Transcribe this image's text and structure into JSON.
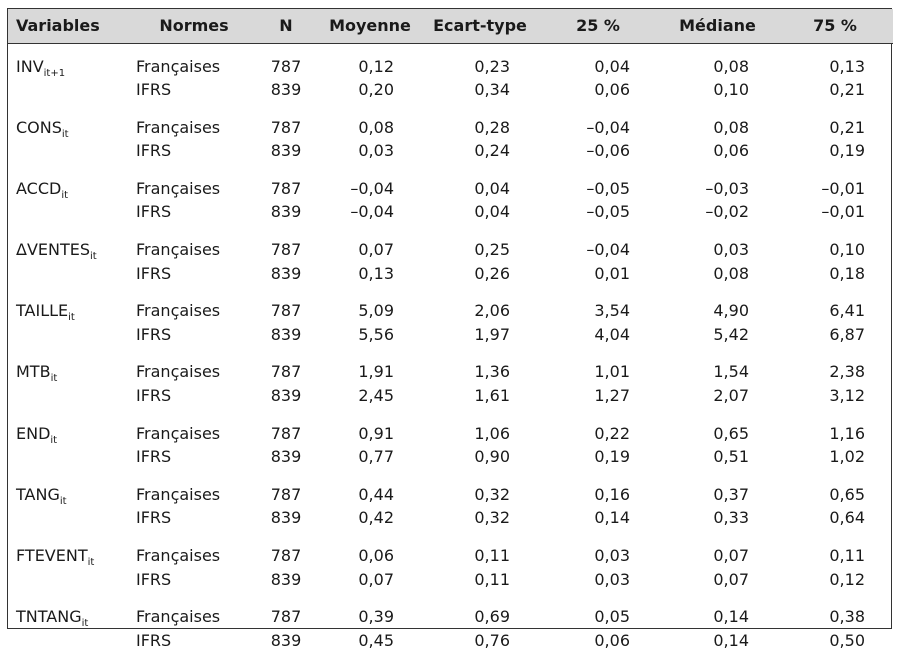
{
  "headers": {
    "variables": "Variables",
    "normes": "Normes",
    "n": "N",
    "moyenne": "Moyenne",
    "ecart_type": "Ecart-type",
    "p25": "25 %",
    "mediane": "Médiane",
    "p75": "75 %"
  },
  "groups": [
    {
      "name": "INV",
      "sub": "it+1",
      "rows": [
        {
          "norme": "Françaises",
          "n": "787",
          "moyenne": "0,12",
          "ecart": "0,23",
          "p25": "0,04",
          "mediane": "0,08",
          "p75": "0,13"
        },
        {
          "norme": "IFRS",
          "n": "839",
          "moyenne": "0,20",
          "ecart": "0,34",
          "p25": "0,06",
          "mediane": "0,10",
          "p75": "0,21"
        }
      ]
    },
    {
      "name": "CONS",
      "sub": "it",
      "rows": [
        {
          "norme": "Françaises",
          "n": "787",
          "moyenne": "0,08",
          "ecart": "0,28",
          "p25": "–0,04",
          "mediane": "0,08",
          "p75": "0,21"
        },
        {
          "norme": "IFRS",
          "n": "839",
          "moyenne": "0,03",
          "ecart": "0,24",
          "p25": "–0,06",
          "mediane": "0,06",
          "p75": "0,19"
        }
      ]
    },
    {
      "name": "ACCD",
      "sub": "it",
      "rows": [
        {
          "norme": "Françaises",
          "n": "787",
          "moyenne": "–0,04",
          "ecart": "0,04",
          "p25": "–0,05",
          "mediane": "–0,03",
          "p75": "–0,01"
        },
        {
          "norme": "IFRS",
          "n": "839",
          "moyenne": "–0,04",
          "ecart": "0,04",
          "p25": "–0,05",
          "mediane": "–0,02",
          "p75": "–0,01"
        }
      ]
    },
    {
      "name": "ΔVENTES",
      "sub": "it",
      "rows": [
        {
          "norme": "Françaises",
          "n": "787",
          "moyenne": "0,07",
          "ecart": "0,25",
          "p25": "–0,04",
          "mediane": "0,03",
          "p75": "0,10"
        },
        {
          "norme": "IFRS",
          "n": "839",
          "moyenne": "0,13",
          "ecart": "0,26",
          "p25": "0,01",
          "mediane": "0,08",
          "p75": "0,18"
        }
      ]
    },
    {
      "name": "TAILLE",
      "sub": "it",
      "rows": [
        {
          "norme": "Françaises",
          "n": "787",
          "moyenne": "5,09",
          "ecart": "2,06",
          "p25": "3,54",
          "mediane": "4,90",
          "p75": "6,41"
        },
        {
          "norme": "IFRS",
          "n": "839",
          "moyenne": "5,56",
          "ecart": "1,97",
          "p25": "4,04",
          "mediane": "5,42",
          "p75": "6,87"
        }
      ]
    },
    {
      "name": "MTB",
      "sub": "it",
      "rows": [
        {
          "norme": "Françaises",
          "n": "787",
          "moyenne": "1,91",
          "ecart": "1,36",
          "p25": "1,01",
          "mediane": "1,54",
          "p75": "2,38"
        },
        {
          "norme": "IFRS",
          "n": "839",
          "moyenne": "2,45",
          "ecart": "1,61",
          "p25": "1,27",
          "mediane": "2,07",
          "p75": "3,12"
        }
      ]
    },
    {
      "name": "END",
      "sub": "it",
      "rows": [
        {
          "norme": "Françaises",
          "n": "787",
          "moyenne": "0,91",
          "ecart": "1,06",
          "p25": "0,22",
          "mediane": "0,65",
          "p75": "1,16"
        },
        {
          "norme": "IFRS",
          "n": "839",
          "moyenne": "0,77",
          "ecart": "0,90",
          "p25": "0,19",
          "mediane": "0,51",
          "p75": "1,02"
        }
      ]
    },
    {
      "name": "TANG",
      "sub": "it",
      "rows": [
        {
          "norme": "Françaises",
          "n": "787",
          "moyenne": "0,44",
          "ecart": "0,32",
          "p25": "0,16",
          "mediane": "0,37",
          "p75": "0,65"
        },
        {
          "norme": "IFRS",
          "n": "839",
          "moyenne": "0,42",
          "ecart": "0,32",
          "p25": "0,14",
          "mediane": "0,33",
          "p75": "0,64"
        }
      ]
    },
    {
      "name": "FTEVENT",
      "sub": "it",
      "rows": [
        {
          "norme": "Françaises",
          "n": "787",
          "moyenne": "0,06",
          "ecart": "0,11",
          "p25": "0,03",
          "mediane": "0,07",
          "p75": "0,11"
        },
        {
          "norme": "IFRS",
          "n": "839",
          "moyenne": "0,07",
          "ecart": "0,11",
          "p25": "0,03",
          "mediane": "0,07",
          "p75": "0,12"
        }
      ]
    },
    {
      "name": "TNTANG",
      "sub": "it",
      "rows": [
        {
          "norme": "Françaises",
          "n": "787",
          "moyenne": "0,39",
          "ecart": "0,69",
          "p25": "0,05",
          "mediane": "0,14",
          "p75": "0,38"
        },
        {
          "norme": "IFRS",
          "n": "839",
          "moyenne": "0,45",
          "ecart": "0,76",
          "p25": "0,06",
          "mediane": "0,14",
          "p75": "0,50"
        }
      ]
    }
  ]
}
